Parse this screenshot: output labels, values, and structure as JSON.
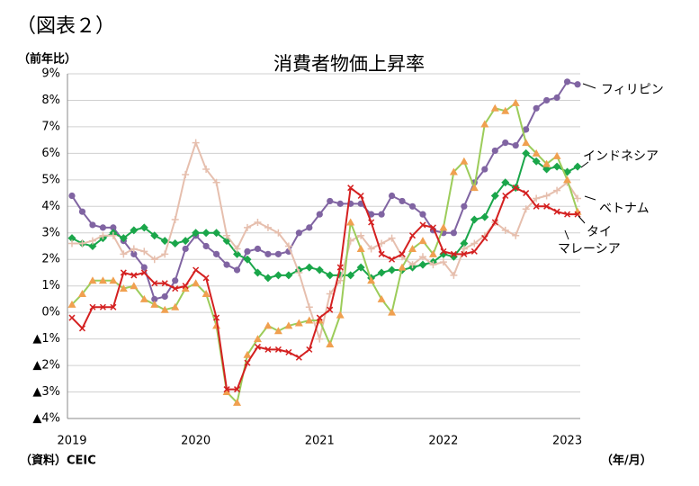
{
  "chart_data": {
    "type": "line",
    "figure_label": "（図表２）",
    "title": "消費者物価上昇率",
    "y_label": "（前年比）",
    "x_label": "（年/月）",
    "source": "（資料）CEIC",
    "categories": [
      "2019",
      null,
      null,
      null,
      null,
      null,
      null,
      null,
      null,
      null,
      null,
      null,
      "2020",
      null,
      null,
      null,
      null,
      null,
      null,
      null,
      null,
      null,
      null,
      null,
      "2021",
      null,
      null,
      null,
      null,
      null,
      null,
      null,
      null,
      null,
      null,
      null,
      "2022",
      null,
      null,
      null,
      null,
      null,
      null,
      null,
      null,
      null,
      null,
      null,
      "2023",
      null
    ],
    "ylim": [
      -4,
      9
    ],
    "yticks": [
      {
        "value": -4,
        "label": "▲4%"
      },
      {
        "value": -3,
        "label": "▲3%"
      },
      {
        "value": -2,
        "label": "▲2%"
      },
      {
        "value": -1,
        "label": "▲1%"
      },
      {
        "value": 0,
        "label": "0%"
      },
      {
        "value": 1,
        "label": "1%"
      },
      {
        "value": 2,
        "label": "2%"
      },
      {
        "value": 3,
        "label": "3%"
      },
      {
        "value": 4,
        "label": "4%"
      },
      {
        "value": 5,
        "label": "5%"
      },
      {
        "value": 6,
        "label": "6%"
      },
      {
        "value": 7,
        "label": "7%"
      },
      {
        "value": 8,
        "label": "8%"
      },
      {
        "value": 9,
        "label": "9%"
      }
    ],
    "grid": true,
    "series": [
      {
        "name": "フィリピン",
        "color": "#8064a2",
        "marker_color": "#8064a2",
        "marker": "circle",
        "values": [
          4.4,
          3.8,
          3.3,
          3.2,
          3.2,
          2.7,
          2.2,
          1.7,
          0.5,
          0.6,
          1.2,
          2.4,
          2.9,
          2.5,
          2.2,
          1.8,
          1.6,
          2.3,
          2.4,
          2.2,
          2.2,
          2.3,
          3.0,
          3.2,
          3.7,
          4.2,
          4.1,
          4.1,
          4.1,
          3.7,
          3.7,
          4.4,
          4.2,
          4.0,
          3.7,
          3.1,
          3.0,
          3.0,
          4.0,
          4.9,
          5.4,
          6.1,
          6.4,
          6.3,
          6.9,
          7.7,
          8.0,
          8.1,
          8.7,
          8.6
        ]
      },
      {
        "name": "インドネシア",
        "color": "#1aa64a",
        "marker_color": "#1aa64a",
        "marker": "diamond",
        "values": [
          2.8,
          2.6,
          2.5,
          2.8,
          3.0,
          2.8,
          3.1,
          3.2,
          2.9,
          2.7,
          2.6,
          2.7,
          3.0,
          3.0,
          3.0,
          2.7,
          2.2,
          2.0,
          1.5,
          1.3,
          1.4,
          1.4,
          1.6,
          1.7,
          1.6,
          1.4,
          1.4,
          1.4,
          1.7,
          1.3,
          1.5,
          1.6,
          1.6,
          1.7,
          1.8,
          1.9,
          2.2,
          2.1,
          2.6,
          3.5,
          3.6,
          4.4,
          4.9,
          4.7,
          6.0,
          5.7,
          5.4,
          5.5,
          5.3,
          5.5
        ]
      },
      {
        "name": "ベトナム",
        "color": "#e6bfae",
        "marker_color": "#e6bfae",
        "marker": "plus",
        "values": [
          2.6,
          2.6,
          2.7,
          2.9,
          2.9,
          2.2,
          2.4,
          2.3,
          2.0,
          2.2,
          3.5,
          5.2,
          6.4,
          5.4,
          4.9,
          2.9,
          2.4,
          3.2,
          3.4,
          3.2,
          3.0,
          2.5,
          1.5,
          0.2,
          -1.0,
          0.7,
          1.2,
          2.7,
          2.9,
          2.4,
          2.6,
          2.8,
          2.1,
          1.8,
          2.1,
          1.8,
          1.9,
          1.4,
          2.4,
          2.6,
          2.9,
          3.4,
          3.1,
          2.9,
          3.9,
          4.3,
          4.4,
          4.6,
          4.9,
          4.3
        ]
      },
      {
        "name": "タイ",
        "color": "#9ccc5a",
        "marker_color": "#f0a050",
        "marker": "triangle",
        "values": [
          0.3,
          0.7,
          1.2,
          1.2,
          1.2,
          0.9,
          1.0,
          0.5,
          0.3,
          0.1,
          0.2,
          0.9,
          1.1,
          0.7,
          -0.5,
          -3.0,
          -3.4,
          -1.6,
          -1.0,
          -0.5,
          -0.7,
          -0.5,
          -0.4,
          -0.3,
          -0.3,
          -1.2,
          -0.1,
          3.4,
          2.4,
          1.2,
          0.5,
          0.0,
          1.7,
          2.4,
          2.7,
          2.2,
          3.2,
          5.3,
          5.7,
          4.7,
          7.1,
          7.7,
          7.6,
          7.9,
          6.4,
          6.0,
          5.6,
          5.9,
          5.0,
          3.8
        ]
      },
      {
        "name": "マレーシア",
        "color": "#d42020",
        "marker_color": "#d42020",
        "marker": "x",
        "values": [
          -0.2,
          -0.6,
          0.2,
          0.2,
          0.2,
          1.5,
          1.4,
          1.5,
          1.1,
          1.1,
          0.9,
          1.0,
          1.6,
          1.3,
          -0.2,
          -2.9,
          -2.9,
          -1.9,
          -1.3,
          -1.4,
          -1.4,
          -1.5,
          -1.7,
          -1.4,
          -0.2,
          0.1,
          1.7,
          4.7,
          4.4,
          3.4,
          2.2,
          2.0,
          2.2,
          2.9,
          3.3,
          3.2,
          2.3,
          2.2,
          2.2,
          2.3,
          2.8,
          3.4,
          4.4,
          4.7,
          4.5,
          4.0,
          4.0,
          3.8,
          3.7,
          3.7
        ]
      }
    ]
  }
}
